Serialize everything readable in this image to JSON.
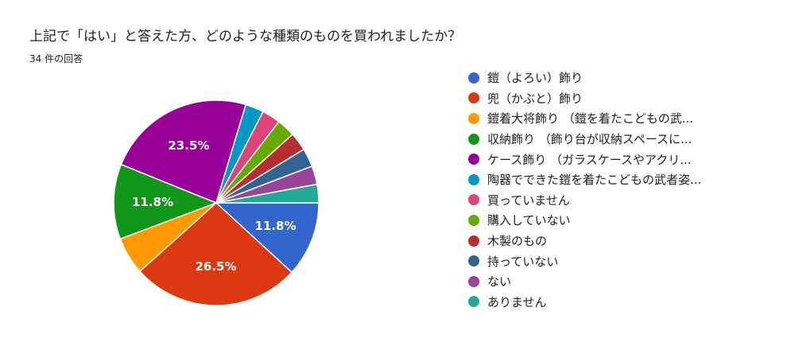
{
  "header": {
    "title": "上記で「はい」と答えた方、どのような種類のものを買われましたか？",
    "response_count": "34 件の回答"
  },
  "chart_data": {
    "type": "pie",
    "legend_position": "right",
    "slices": [
      {
        "label": "鎧（よろい）飾り",
        "value": 11.8,
        "display": "11.8%",
        "color": "#3366cc"
      },
      {
        "label": "兜（かぶと）飾り",
        "value": 26.5,
        "display": "26.5%",
        "color": "#dc3912"
      },
      {
        "label": "鎧着大将飾り （鎧を着たこどもの武...",
        "value": 5.9,
        "display": "",
        "color": "#ff9900"
      },
      {
        "label": "収納飾り （飾り台が収納スペースに...",
        "value": 11.8,
        "display": "11.8%",
        "color": "#109618"
      },
      {
        "label": "ケース飾り （ガラスケースやアクリ...",
        "value": 23.5,
        "display": "23.5%",
        "color": "#990099"
      },
      {
        "label": "陶器でできた鎧を着たこどもの武者姿...",
        "value": 2.9,
        "display": "",
        "color": "#0099c6"
      },
      {
        "label": "買っていません",
        "value": 2.9,
        "display": "",
        "color": "#dd4477"
      },
      {
        "label": "購入していない",
        "value": 2.9,
        "display": "",
        "color": "#66aa00"
      },
      {
        "label": "木製のもの",
        "value": 2.9,
        "display": "",
        "color": "#b82e2e"
      },
      {
        "label": "持っていない",
        "value": 2.9,
        "display": "",
        "color": "#316395"
      },
      {
        "label": "ない",
        "value": 2.9,
        "display": "",
        "color": "#994499"
      },
      {
        "label": "ありません",
        "value": 2.9,
        "display": "",
        "color": "#22aa99"
      }
    ]
  }
}
